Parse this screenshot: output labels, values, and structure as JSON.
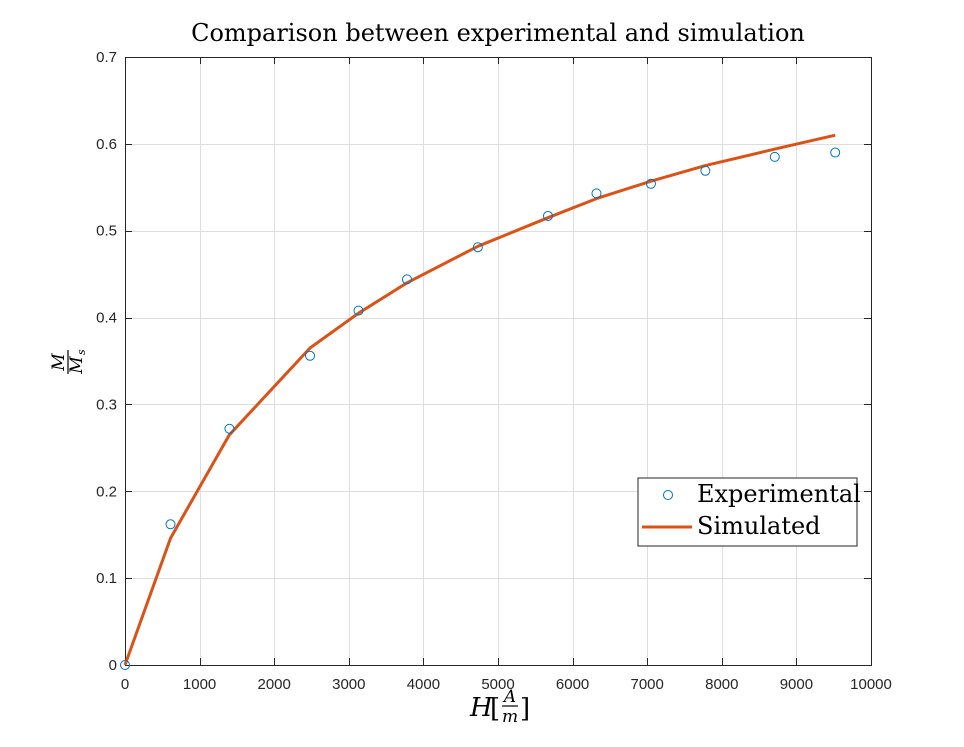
{
  "chart_data": {
    "type": "scatter+line",
    "title": "Comparison between experimental and simulation",
    "xlabel": {
      "var": "H",
      "open": "[",
      "num": "A",
      "den": "m",
      "close": "]"
    },
    "ylabel": {
      "num": "M",
      "den_main": "M",
      "den_sub": "s"
    },
    "xlim": [
      0,
      10000
    ],
    "ylim": [
      0,
      0.7
    ],
    "xticks": [
      0,
      1000,
      2000,
      3000,
      4000,
      5000,
      6000,
      7000,
      8000,
      9000,
      10000
    ],
    "xtick_labels": [
      "0",
      "1000",
      "2000",
      "3000",
      "4000",
      "5000",
      "6000",
      "7000",
      "8000",
      "9000",
      "10000"
    ],
    "yticks": [
      0,
      0.1,
      0.2,
      0.3,
      0.4,
      0.5,
      0.6,
      0.7
    ],
    "ytick_labels": [
      "0",
      "0.1",
      "0.2",
      "0.3",
      "0.4",
      "0.5",
      "0.6",
      "0.7"
    ],
    "grid": true,
    "legend_position": "bottom-right",
    "series": [
      {
        "name": "Experimental",
        "kind": "scatter",
        "marker": "circle-open",
        "color": "#0072BD",
        "x": [
          0,
          610,
          1400,
          2480,
          3130,
          3780,
          4730,
          5670,
          6320,
          7050,
          7780,
          8710,
          9520
        ],
        "y": [
          0,
          0.162,
          0.272,
          0.356,
          0.408,
          0.444,
          0.481,
          0.517,
          0.543,
          0.554,
          0.569,
          0.585,
          0.59
        ]
      },
      {
        "name": "Simulated",
        "kind": "line",
        "color": "#D95319",
        "x": [
          0,
          610,
          1400,
          2480,
          3130,
          3780,
          4730,
          5670,
          6320,
          7050,
          7780,
          8710,
          9520
        ],
        "y": [
          0,
          0.146,
          0.265,
          0.365,
          0.405,
          0.44,
          0.482,
          0.515,
          0.537,
          0.557,
          0.575,
          0.594,
          0.61
        ]
      }
    ]
  }
}
